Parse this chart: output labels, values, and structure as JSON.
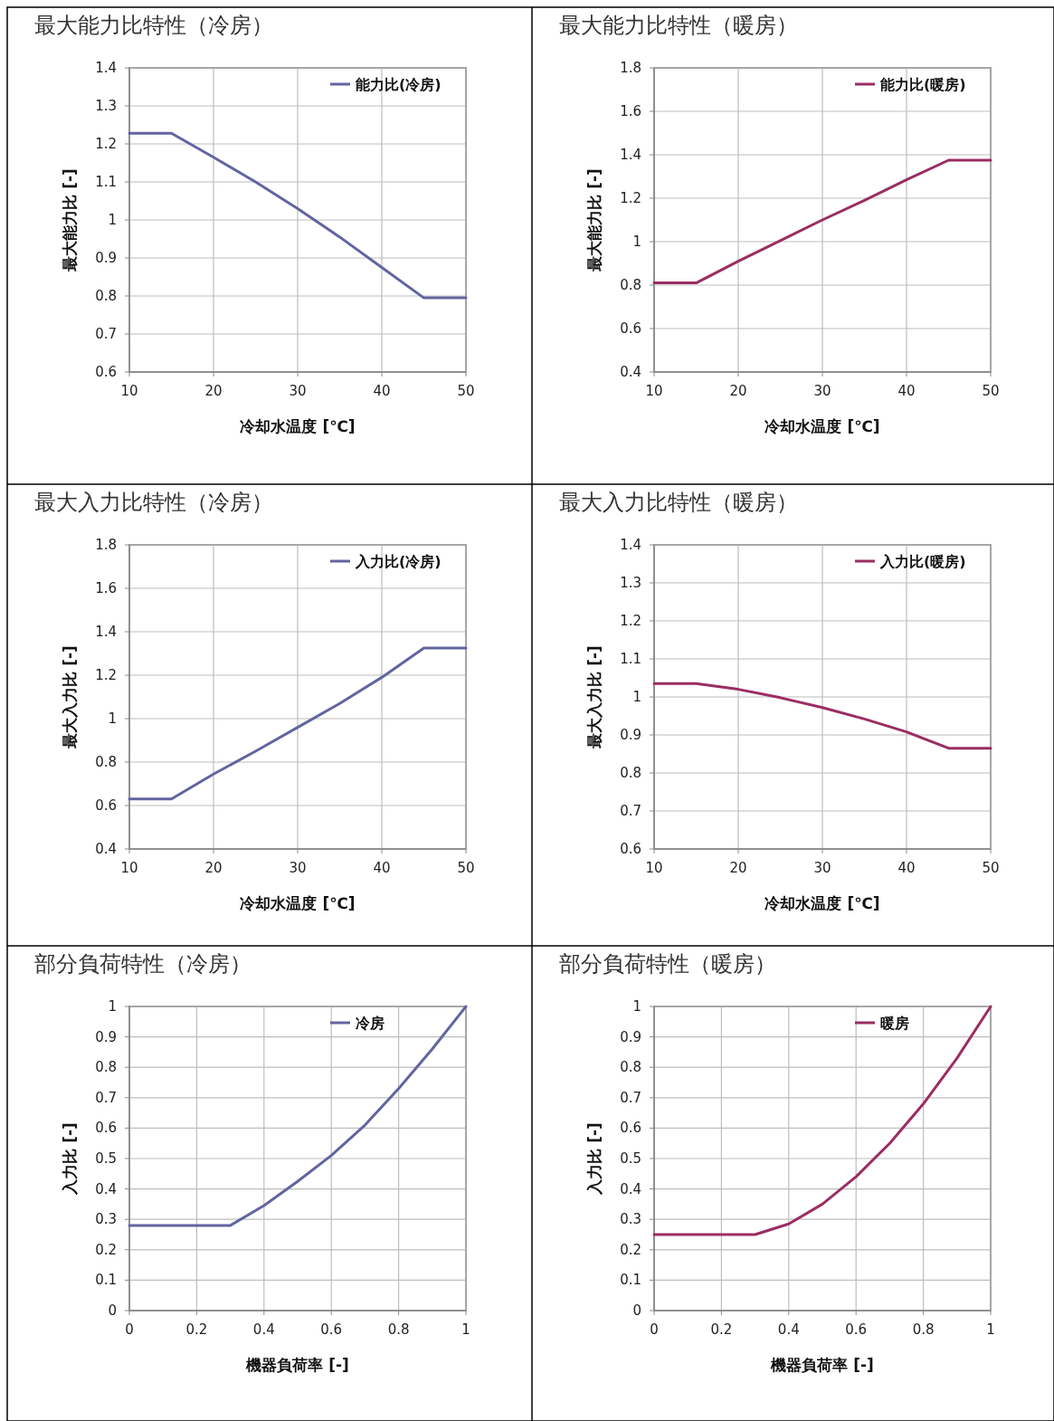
{
  "chart_data": [
    {
      "type": "line",
      "title": "最大能力比特性（冷房）",
      "xlabel": "冷却水温度 [℃]",
      "ylabel": "最大能力比 [-]",
      "x": [
        10,
        15,
        20,
        25,
        30,
        35,
        40,
        45,
        50
      ],
      "series": [
        {
          "name": "能力比(冷房)",
          "color": "#6264a0",
          "values": [
            1.228,
            1.228,
            1.165,
            1.1,
            1.03,
            0.955,
            0.875,
            0.795,
            0.795
          ]
        }
      ],
      "xlim": [
        10,
        50
      ],
      "xticks": [
        10,
        20,
        30,
        40,
        50
      ],
      "ylim": [
        0.6,
        1.4
      ],
      "yticks": [
        0.6,
        0.7,
        0.8,
        0.9,
        1,
        1.1,
        1.2,
        1.3,
        1.4
      ],
      "grid": true,
      "legend": "top right"
    },
    {
      "type": "line",
      "title": "最大能力比特性（暖房）",
      "xlabel": "冷却水温度 [℃]",
      "ylabel": "最大能力比 [-]",
      "x": [
        10,
        15,
        20,
        25,
        30,
        35,
        40,
        45,
        50
      ],
      "series": [
        {
          "name": "能力比(暖房)",
          "color": "#9b2d62",
          "values": [
            0.81,
            0.81,
            0.91,
            1.005,
            1.1,
            1.19,
            1.285,
            1.375,
            1.375
          ]
        }
      ],
      "xlim": [
        10,
        50
      ],
      "xticks": [
        10,
        20,
        30,
        40,
        50
      ],
      "ylim": [
        0.4,
        1.8
      ],
      "yticks": [
        0.4,
        0.6,
        0.8,
        1,
        1.2,
        1.4,
        1.6,
        1.8
      ],
      "grid": true,
      "legend": "top right"
    },
    {
      "type": "line",
      "title": "最大入力比特性（冷房）",
      "xlabel": "冷却水温度 [℃]",
      "ylabel": "最大入力比 [-]",
      "x": [
        10,
        15,
        20,
        25,
        30,
        35,
        40,
        45,
        50
      ],
      "series": [
        {
          "name": "入力比(冷房)",
          "color": "#6264a0",
          "values": [
            0.63,
            0.63,
            0.745,
            0.85,
            0.96,
            1.07,
            1.19,
            1.325,
            1.325
          ]
        }
      ],
      "xlim": [
        10,
        50
      ],
      "xticks": [
        10,
        20,
        30,
        40,
        50
      ],
      "ylim": [
        0.4,
        1.8
      ],
      "yticks": [
        0.4,
        0.6,
        0.8,
        1,
        1.2,
        1.4,
        1.6,
        1.8
      ],
      "grid": true,
      "legend": "top right"
    },
    {
      "type": "line",
      "title": "最大入力比特性（暖房）",
      "xlabel": "冷却水温度 [℃]",
      "ylabel": "最大入力比 [-]",
      "x": [
        10,
        15,
        20,
        25,
        30,
        35,
        40,
        45,
        50
      ],
      "series": [
        {
          "name": "入力比(暖房)",
          "color": "#9b2d62",
          "values": [
            1.035,
            1.035,
            1.02,
            0.998,
            0.972,
            0.942,
            0.908,
            0.865,
            0.865
          ]
        }
      ],
      "xlim": [
        10,
        50
      ],
      "xticks": [
        10,
        20,
        30,
        40,
        50
      ],
      "ylim": [
        0.6,
        1.4
      ],
      "yticks": [
        0.6,
        0.7,
        0.8,
        0.9,
        1,
        1.1,
        1.2,
        1.3,
        1.4
      ],
      "grid": true,
      "legend": "top right"
    },
    {
      "type": "line",
      "title": "部分負荷特性（冷房）",
      "xlabel": "機器負荷率 [-]",
      "ylabel": "入力比 [-]",
      "x": [
        0,
        0.3,
        0.4,
        0.5,
        0.6,
        0.7,
        0.8,
        0.9,
        1
      ],
      "series": [
        {
          "name": "冷房",
          "color": "#6264a0",
          "values": [
            0.28,
            0.28,
            0.345,
            0.425,
            0.51,
            0.61,
            0.73,
            0.86,
            1
          ]
        }
      ],
      "xlim": [
        0,
        1
      ],
      "xticks": [
        0,
        0.2,
        0.4,
        0.6,
        0.8,
        1
      ],
      "ylim": [
        0,
        1
      ],
      "yticks": [
        0,
        0.1,
        0.2,
        0.3,
        0.4,
        0.5,
        0.6,
        0.7,
        0.8,
        0.9,
        1
      ],
      "grid": true,
      "legend": "top right"
    },
    {
      "type": "line",
      "title": "部分負荷特性（暖房）",
      "xlabel": "機器負荷率 [-]",
      "ylabel": "入力比 [-]",
      "x": [
        0,
        0.3,
        0.4,
        0.5,
        0.6,
        0.7,
        0.8,
        0.9,
        1
      ],
      "series": [
        {
          "name": "暖房",
          "color": "#9b2d62",
          "values": [
            0.25,
            0.25,
            0.285,
            0.35,
            0.44,
            0.55,
            0.68,
            0.83,
            1
          ]
        }
      ],
      "xlim": [
        0,
        1
      ],
      "xticks": [
        0,
        0.2,
        0.4,
        0.6,
        0.8,
        1
      ],
      "ylim": [
        0,
        1
      ],
      "yticks": [
        0,
        0.1,
        0.2,
        0.3,
        0.4,
        0.5,
        0.6,
        0.7,
        0.8,
        0.9,
        1
      ],
      "grid": true,
      "legend": "top right"
    }
  ]
}
